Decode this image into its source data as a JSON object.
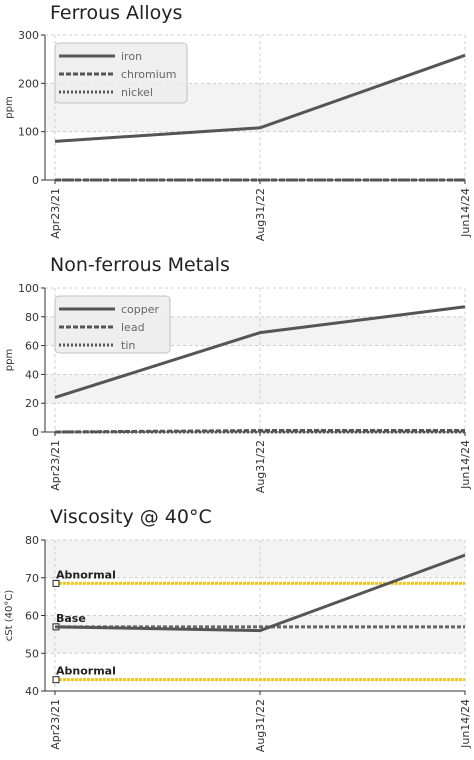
{
  "chart_data": [
    {
      "type": "line",
      "title": "Ferrous Alloys",
      "ylabel": "ppm",
      "xlabel": "",
      "categories": [
        "Apr23/21",
        "Aug31/22",
        "Jun14/24"
      ],
      "ylim": [
        0,
        300
      ],
      "yticks": [
        0,
        100,
        200,
        300
      ],
      "grid": true,
      "legend_position": "top-left",
      "series": [
        {
          "name": "iron",
          "values": [
            80,
            108,
            258
          ],
          "style": "solid"
        },
        {
          "name": "chromium",
          "values": [
            0,
            0,
            0
          ],
          "style": "dashed"
        },
        {
          "name": "nickel",
          "values": [
            0,
            0,
            0
          ],
          "style": "dotted"
        }
      ]
    },
    {
      "type": "line",
      "title": "Non-ferrous Metals",
      "ylabel": "ppm",
      "xlabel": "",
      "categories": [
        "Apr23/21",
        "Aug31/22",
        "Jun14/24"
      ],
      "ylim": [
        0,
        100
      ],
      "yticks": [
        0,
        20,
        40,
        60,
        80,
        100
      ],
      "grid": true,
      "legend_position": "top-left",
      "series": [
        {
          "name": "copper",
          "values": [
            24,
            69,
            87
          ],
          "style": "solid"
        },
        {
          "name": "lead",
          "values": [
            0,
            1,
            1
          ],
          "style": "dashed"
        },
        {
          "name": "tin",
          "values": [
            0,
            0,
            0
          ],
          "style": "dotted"
        }
      ]
    },
    {
      "type": "line",
      "title": "Viscosity @ 40°C",
      "ylabel": "cSt (40°C)",
      "xlabel": "",
      "categories": [
        "Apr23/21",
        "Aug31/22",
        "Jun14/24"
      ],
      "ylim": [
        40,
        80
      ],
      "yticks": [
        40,
        50,
        60,
        70,
        80
      ],
      "grid": true,
      "series": [
        {
          "name": "",
          "values": [
            57,
            56,
            76
          ],
          "style": "solid"
        }
      ],
      "reference_lines": [
        {
          "label": "Abnormal",
          "value": 68.5,
          "color": "#f0c419",
          "style": "dotted"
        },
        {
          "label": "Base",
          "value": 57,
          "color": "#666666",
          "style": "dashed"
        },
        {
          "label": "Abnormal",
          "value": 43,
          "color": "#f0c419",
          "style": "dotted"
        }
      ]
    }
  ],
  "colors": {
    "line": "#555555",
    "grid": "#cccccc",
    "band": "#f3f3f3",
    "axis": "#333333",
    "threshold": "#f0c419"
  }
}
